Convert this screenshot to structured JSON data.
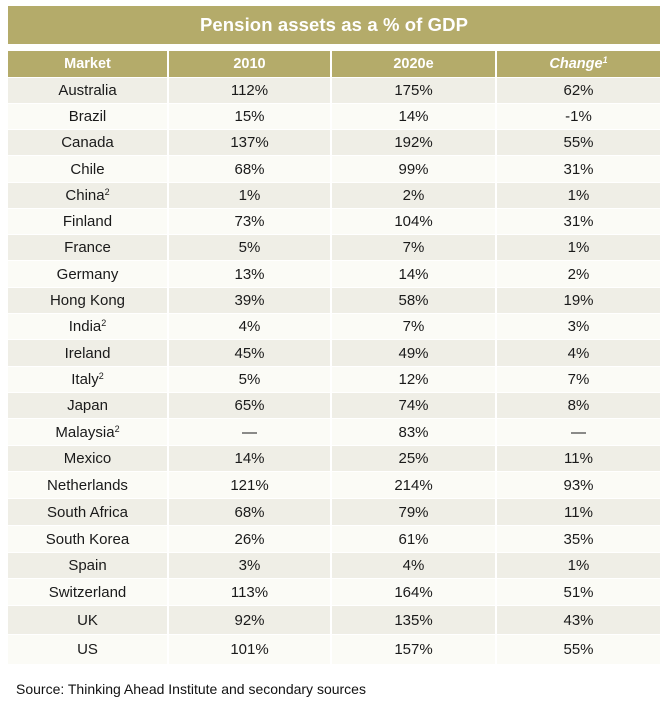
{
  "chart_data": {
    "type": "table",
    "title": "Pension assets as a % of GDP",
    "columns": [
      "Market",
      "2010",
      "2020e",
      "Change"
    ],
    "column_notes": {
      "Change": "1"
    },
    "rows": [
      {
        "market": "Australia",
        "note": "",
        "y2010": "112%",
        "y2020e": "175%",
        "change": "62%"
      },
      {
        "market": "Brazil",
        "note": "",
        "y2010": "15%",
        "y2020e": "14%",
        "change": "-1%"
      },
      {
        "market": "Canada",
        "note": "",
        "y2010": "137%",
        "y2020e": "192%",
        "change": "55%"
      },
      {
        "market": "Chile",
        "note": "",
        "y2010": "68%",
        "y2020e": "99%",
        "change": "31%"
      },
      {
        "market": "China",
        "note": "2",
        "y2010": "1%",
        "y2020e": "2%",
        "change": "1%"
      },
      {
        "market": "Finland",
        "note": "",
        "y2010": "73%",
        "y2020e": "104%",
        "change": "31%"
      },
      {
        "market": "France",
        "note": "",
        "y2010": "5%",
        "y2020e": "7%",
        "change": "1%"
      },
      {
        "market": "Germany",
        "note": "",
        "y2010": "13%",
        "y2020e": "14%",
        "change": "2%"
      },
      {
        "market": "Hong Kong",
        "note": "",
        "y2010": "39%",
        "y2020e": "58%",
        "change": "19%"
      },
      {
        "market": "India",
        "note": "2",
        "y2010": "4%",
        "y2020e": "7%",
        "change": "3%"
      },
      {
        "market": "Ireland",
        "note": "",
        "y2010": "45%",
        "y2020e": "49%",
        "change": "4%"
      },
      {
        "market": "Italy",
        "note": "2",
        "y2010": "5%",
        "y2020e": "12%",
        "change": "7%"
      },
      {
        "market": "Japan",
        "note": "",
        "y2010": "65%",
        "y2020e": "74%",
        "change": "8%"
      },
      {
        "market": "Malaysia",
        "note": "2",
        "y2010": "—",
        "y2020e": "83%",
        "change": "—"
      },
      {
        "market": "Mexico",
        "note": "",
        "y2010": "14%",
        "y2020e": "25%",
        "change": "11%"
      },
      {
        "market": "Netherlands",
        "note": "",
        "y2010": "121%",
        "y2020e": "214%",
        "change": "93%"
      },
      {
        "market": "South Africa",
        "note": "",
        "y2010": "68%",
        "y2020e": "79%",
        "change": "11%"
      },
      {
        "market": "South Korea",
        "note": "",
        "y2010": "26%",
        "y2020e": "61%",
        "change": "35%"
      },
      {
        "market": "Spain",
        "note": "",
        "y2010": "3%",
        "y2020e": "4%",
        "change": "1%"
      },
      {
        "market": "Switzerland",
        "note": "",
        "y2010": "113%",
        "y2020e": "164%",
        "change": "51%"
      },
      {
        "market": "UK",
        "note": "",
        "y2010": "92%",
        "y2020e": "135%",
        "change": "43%"
      },
      {
        "market": "US",
        "note": "",
        "y2010": "101%",
        "y2020e": "157%",
        "change": "55%"
      }
    ],
    "source": "Source: Thinking Ahead Institute and secondary sources"
  },
  "colors": {
    "header_bg": "#b4ab6a",
    "row_odd": "#efeee6",
    "row_even": "#fbfbf6",
    "header_text": "#ffffff"
  }
}
